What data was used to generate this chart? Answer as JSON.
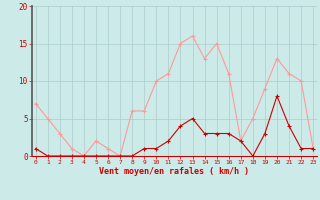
{
  "x": [
    0,
    1,
    2,
    3,
    4,
    5,
    6,
    7,
    8,
    9,
    10,
    11,
    12,
    13,
    14,
    15,
    16,
    17,
    18,
    19,
    20,
    21,
    22,
    23
  ],
  "y_moyen": [
    1,
    0,
    0,
    0,
    0,
    0,
    0,
    0,
    0,
    1,
    1,
    2,
    4,
    5,
    3,
    3,
    3,
    2,
    0,
    3,
    8,
    4,
    1,
    1
  ],
  "y_rafales": [
    7,
    5,
    3,
    1,
    0,
    2,
    1,
    0,
    6,
    6,
    10,
    11,
    15,
    16,
    13,
    15,
    11,
    2,
    5,
    9,
    13,
    11,
    10,
    1
  ],
  "color_moyen": "#cc0000",
  "color_rafales": "#ff9999",
  "background_color": "#cceae8",
  "grid_color": "#aacccc",
  "xlabel": "Vent moyen/en rafales ( km/h )",
  "xlabel_color": "#cc0000",
  "ylim": [
    0,
    20
  ],
  "yticks": [
    0,
    5,
    10,
    15,
    20
  ],
  "xticks": [
    0,
    1,
    2,
    3,
    4,
    5,
    6,
    7,
    8,
    9,
    10,
    11,
    12,
    13,
    14,
    15,
    16,
    17,
    18,
    19,
    20,
    21,
    22,
    23
  ],
  "tick_label_color": "#cc0000",
  "axis_color": "#cc0000",
  "left_spine_color": "#555555"
}
